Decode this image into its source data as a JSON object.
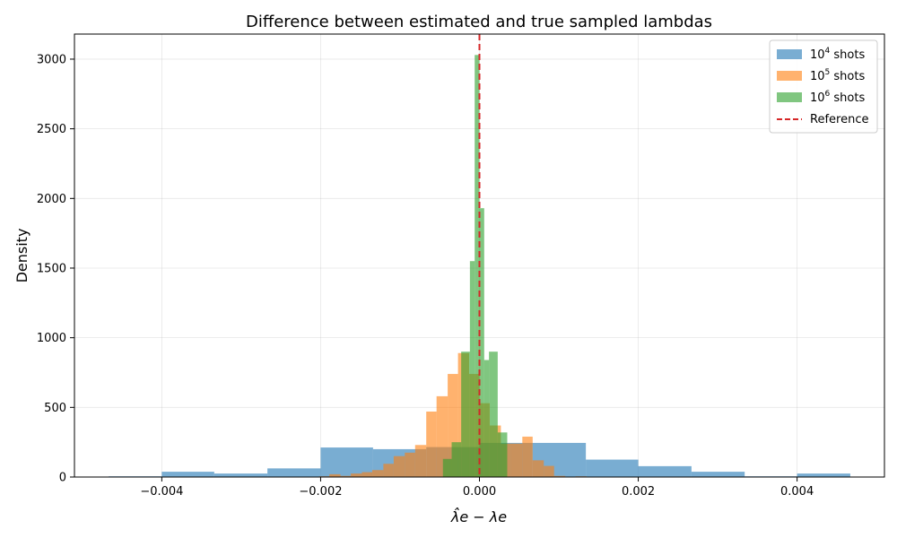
{
  "chart_data": {
    "type": "bar",
    "title": "Difference between estimated and true sampled lambdas",
    "xlabel": "λ̂e − λe",
    "ylabel": "Density",
    "xlim": [
      -0.0051,
      0.0051
    ],
    "ylim": [
      0,
      3180
    ],
    "xticks": [
      -0.004,
      -0.002,
      0.0,
      0.002,
      0.004
    ],
    "xtick_labels": [
      "−0.004",
      "−0.002",
      "0.000",
      "0.002",
      "0.004"
    ],
    "yticks": [
      0,
      500,
      1000,
      1500,
      2000,
      2500,
      3000
    ],
    "ytick_labels": [
      "0",
      "500",
      "1000",
      "1500",
      "2000",
      "2500",
      "3000"
    ],
    "grid": true,
    "legend_position": "top-right",
    "reference_line": {
      "x": 0.0,
      "label": "Reference",
      "color": "#d62728",
      "style": "dashed"
    },
    "series": [
      {
        "name": "10^4 shots",
        "label_base": "10",
        "label_exp": "4",
        "label_suffix": " shots",
        "color": "#1f77b4",
        "opacity": 0.6,
        "bin_edges": [
          -0.00467,
          -0.004,
          -0.00334,
          -0.00267,
          -0.002,
          -0.00134,
          -0.00067,
          0.0,
          0.00067,
          0.00134,
          0.002,
          0.00267,
          0.00334,
          0.004,
          0.00467
        ],
        "values": [
          5,
          38,
          25,
          62,
          212,
          200,
          215,
          245,
          245,
          125,
          78,
          38,
          5,
          25
        ]
      },
      {
        "name": "10^5 shots",
        "label_base": "10",
        "label_exp": "5",
        "label_suffix": " shots",
        "color": "#ff7f0e",
        "opacity": 0.6,
        "bin_edges": [
          -0.00202,
          -0.00189,
          -0.00175,
          -0.00162,
          -0.00148,
          -0.00135,
          -0.00121,
          -0.00108,
          -0.00094,
          -0.00081,
          -0.00067,
          -0.00054,
          -0.0004,
          -0.00027,
          -0.00013,
          0.0,
          0.00013,
          0.00027,
          0.0004,
          0.00054,
          0.00067,
          0.00081,
          0.00094,
          0.00108,
          0.00121,
          0.00135
        ],
        "values": [
          5,
          20,
          8,
          25,
          35,
          50,
          95,
          150,
          175,
          230,
          470,
          580,
          740,
          890,
          740,
          530,
          370,
          240,
          240,
          290,
          120,
          80,
          8,
          0,
          5
        ]
      },
      {
        "name": "10^6 shots",
        "label_base": "10",
        "label_exp": "6",
        "label_suffix": " shots",
        "color": "#2ca02c",
        "opacity": 0.6,
        "bin_edges": [
          -0.00058,
          -0.00046,
          -0.00035,
          -0.00023,
          -0.00012,
          -6e-05,
          0.0,
          6e-05,
          0.00012,
          0.00023,
          0.00035,
          0.00046
        ],
        "values": [
          0,
          130,
          250,
          900,
          1550,
          3030,
          1930,
          840,
          900,
          320,
          0
        ]
      }
    ]
  }
}
